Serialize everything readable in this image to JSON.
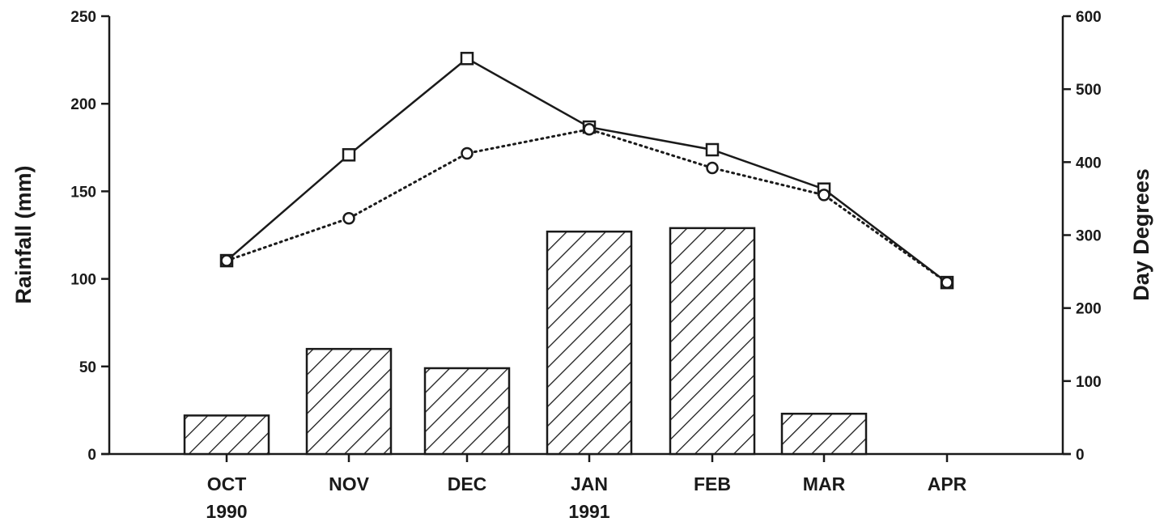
{
  "chart_data": {
    "type": "bar",
    "categories": [
      "OCT",
      "NOV",
      "DEC",
      "JAN",
      "FEB",
      "MAR",
      "APR"
    ],
    "category_sublabels": [
      "1990",
      "",
      "",
      "1991",
      "",
      "",
      ""
    ],
    "rainfall": {
      "axis": "left",
      "type": "bar",
      "pattern": "diagonal-hatch",
      "values": [
        22,
        60,
        49,
        127,
        129,
        23,
        null
      ]
    },
    "line_series": [
      {
        "axis": "right",
        "type": "line",
        "line_style": "solid",
        "marker": "square",
        "values": [
          265,
          410,
          542,
          448,
          417,
          363,
          235
        ]
      },
      {
        "axis": "right",
        "type": "line",
        "line_style": "dotted",
        "marker": "circle",
        "values": [
          265,
          323,
          412,
          445,
          392,
          355,
          235
        ]
      }
    ],
    "ylabel": "Rainfall (mm)",
    "ylim": [
      0,
      250
    ],
    "yticks": [
      0,
      50,
      100,
      150,
      200,
      250
    ],
    "y2label": "Day Degrees",
    "y2lim": [
      0,
      600
    ],
    "y2ticks": [
      0,
      100,
      200,
      300,
      400,
      500,
      600
    ],
    "grid": false,
    "legend": "none",
    "colors": {
      "ink": "#1a1a1a",
      "background": "#ffffff"
    }
  }
}
